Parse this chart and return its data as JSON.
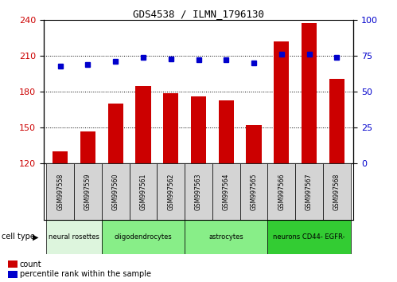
{
  "title": "GDS4538 / ILMN_1796130",
  "samples": [
    "GSM997558",
    "GSM997559",
    "GSM997560",
    "GSM997561",
    "GSM997562",
    "GSM997563",
    "GSM997564",
    "GSM997565",
    "GSM997566",
    "GSM997567",
    "GSM997568"
  ],
  "counts": [
    130,
    147,
    170,
    185,
    179,
    176,
    173,
    152,
    222,
    237,
    191
  ],
  "percentile_ranks": [
    68,
    69,
    71,
    74,
    73,
    72,
    72,
    70,
    76,
    76,
    74
  ],
  "ylim_left": [
    120,
    240
  ],
  "ylim_right": [
    0,
    100
  ],
  "yticks_left": [
    120,
    150,
    180,
    210,
    240
  ],
  "yticks_right": [
    0,
    25,
    50,
    75,
    100
  ],
  "cell_type_groups": [
    {
      "label": "neural rosettes",
      "start": 0,
      "end": 1,
      "color": "#ddf5dd"
    },
    {
      "label": "oligodendrocytes",
      "start": 2,
      "end": 4,
      "color": "#88ee88"
    },
    {
      "label": "astrocytes",
      "start": 5,
      "end": 7,
      "color": "#88ee88"
    },
    {
      "label": "neurons CD44- EGFR-",
      "start": 8,
      "end": 10,
      "color": "#33cc33"
    }
  ],
  "bar_color": "#cc0000",
  "dot_color": "#0000cc",
  "bar_width": 0.55,
  "bg_color": "#ffffff",
  "sample_box_color": "#d4d4d4",
  "tick_label_color_left": "#cc0000",
  "tick_label_color_right": "#0000cc",
  "legend_items": [
    {
      "label": "count",
      "color": "#cc0000"
    },
    {
      "label": "percentile rank within the sample",
      "color": "#0000cc"
    }
  ],
  "cell_type_label": "cell type"
}
